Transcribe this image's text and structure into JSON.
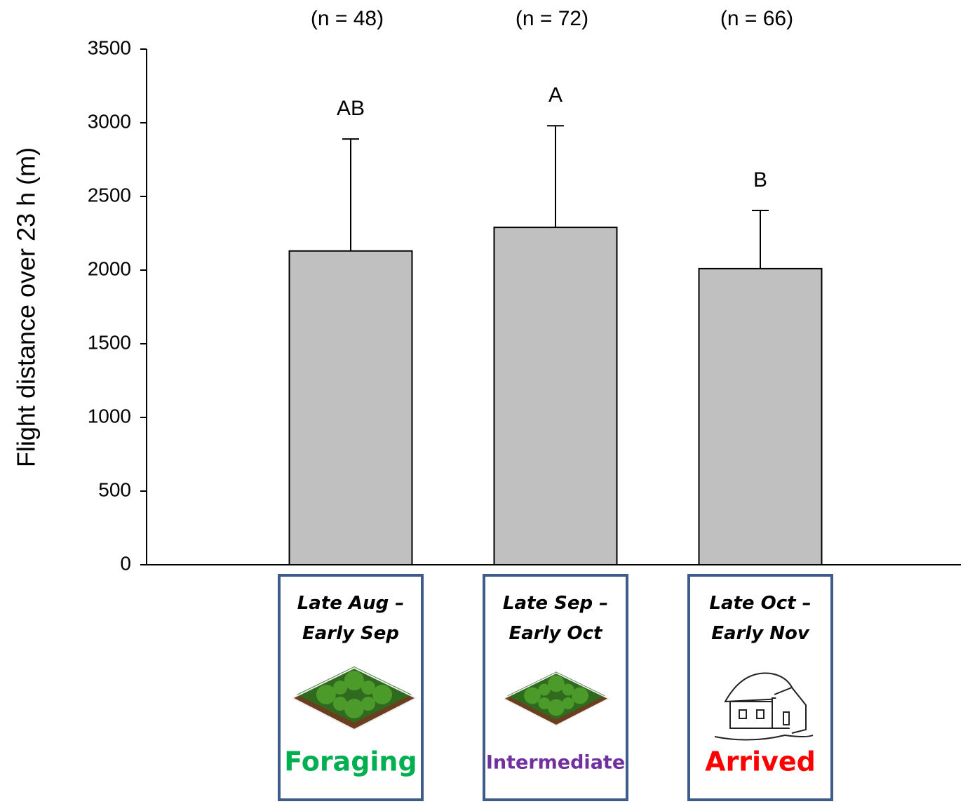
{
  "chart_data": {
    "type": "bar",
    "y_label": "Flight distance over 23 h (m)",
    "categories": [
      "Late Aug –\nEarly Sep",
      "Late Sep –\nEarly Oct",
      "Late Oct –\nEarly Nov"
    ],
    "values": [
      2130,
      2290,
      2010
    ],
    "errors": [
      760,
      690,
      395
    ],
    "color": "#c0c0c0",
    "sample_sizes": [
      "(n = 48)",
      "(n = 72)",
      "(n = 66)"
    ],
    "group_letters": [
      "AB",
      "A",
      "B"
    ],
    "stages": [
      {
        "label": "Foraging",
        "color": "#00b050"
      },
      {
        "label": "Intermediate",
        "color": "#7030a0"
      },
      {
        "label": "Arrived",
        "color": "#ff0000"
      }
    ],
    "ylim": [
      0,
      3500
    ],
    "yticks": [
      0,
      500,
      1000,
      1500,
      2000,
      2500,
      3000,
      3500
    ]
  }
}
